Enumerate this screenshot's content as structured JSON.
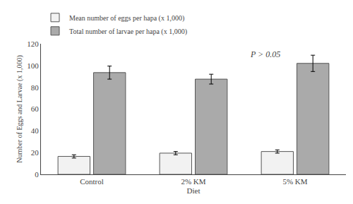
{
  "chart_data": {
    "type": "bar",
    "xlabel": "Diet",
    "ylabel": "Number of Eggs and Larvae (x 1,000)",
    "categories": [
      "Control",
      "2% KM",
      "5% KM"
    ],
    "series": [
      {
        "name": "Mean number of eggs per hapa (x 1,000)",
        "color": "#f2f2f2",
        "values": [
          16.5,
          19.5,
          21.0
        ],
        "errors": [
          1.5,
          1.5,
          1.5
        ]
      },
      {
        "name": "Total number of larvae per hapa (x 1,000)",
        "color": "#aaaaaa",
        "values": [
          93.5,
          87.5,
          102.0
        ],
        "errors": [
          6.0,
          4.5,
          7.5
        ]
      }
    ],
    "ylim": [
      0,
      120
    ],
    "yticks": [
      0,
      20,
      40,
      60,
      80,
      100,
      120
    ],
    "grid": false,
    "legend": "upper left",
    "annotation": "P > 0.05"
  }
}
